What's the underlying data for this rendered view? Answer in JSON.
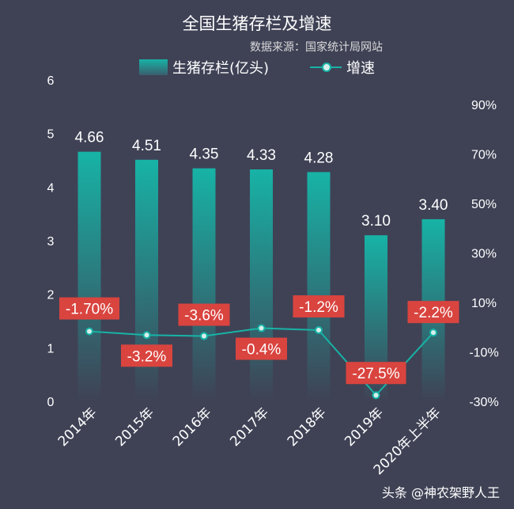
{
  "title": "全国生猪存栏及增速",
  "subtitle": "数据来源：国家统计局网站",
  "watermark": "头条 @神农架野人王",
  "colors": {
    "background": "#3f4255",
    "bar_top": "#17b3a6",
    "bar_bottom": "#3f4255",
    "line": "#17b3a6",
    "label_box": "#d9443f"
  },
  "chart_data": {
    "type": "bar",
    "categories": [
      "2014年",
      "2015年",
      "2016年",
      "2017年",
      "2018年",
      "2019年",
      "2020年上半年"
    ],
    "series": [
      {
        "name": "生猪存栏(亿头)",
        "type": "bar",
        "axis": "left",
        "values": [
          4.66,
          4.51,
          4.35,
          4.33,
          4.28,
          3.1,
          3.4
        ],
        "labels": [
          "4.66",
          "4.51",
          "4.35",
          "4.33",
          "4.28",
          "3.10",
          "3.40"
        ]
      },
      {
        "name": "增速",
        "type": "line",
        "axis": "right",
        "values": [
          -1.7,
          -3.2,
          -3.6,
          -0.4,
          -1.2,
          -27.5,
          -2.2
        ],
        "labels": [
          "-1.70%",
          "-3.2%",
          "-3.6%",
          "-0.4%",
          "-1.2%",
          "-27.5%",
          "-2.2%"
        ]
      }
    ],
    "left_axis": {
      "ylim": [
        0,
        6
      ],
      "ticks": [
        "0",
        "1",
        "2",
        "3",
        "4",
        "5",
        "6"
      ]
    },
    "right_axis": {
      "ylim": [
        -30,
        100
      ],
      "ticks": [
        "-30%",
        "-10%",
        "10%",
        "30%",
        "50%",
        "70%",
        "90%"
      ]
    },
    "grid": false,
    "legend_position": "top"
  }
}
